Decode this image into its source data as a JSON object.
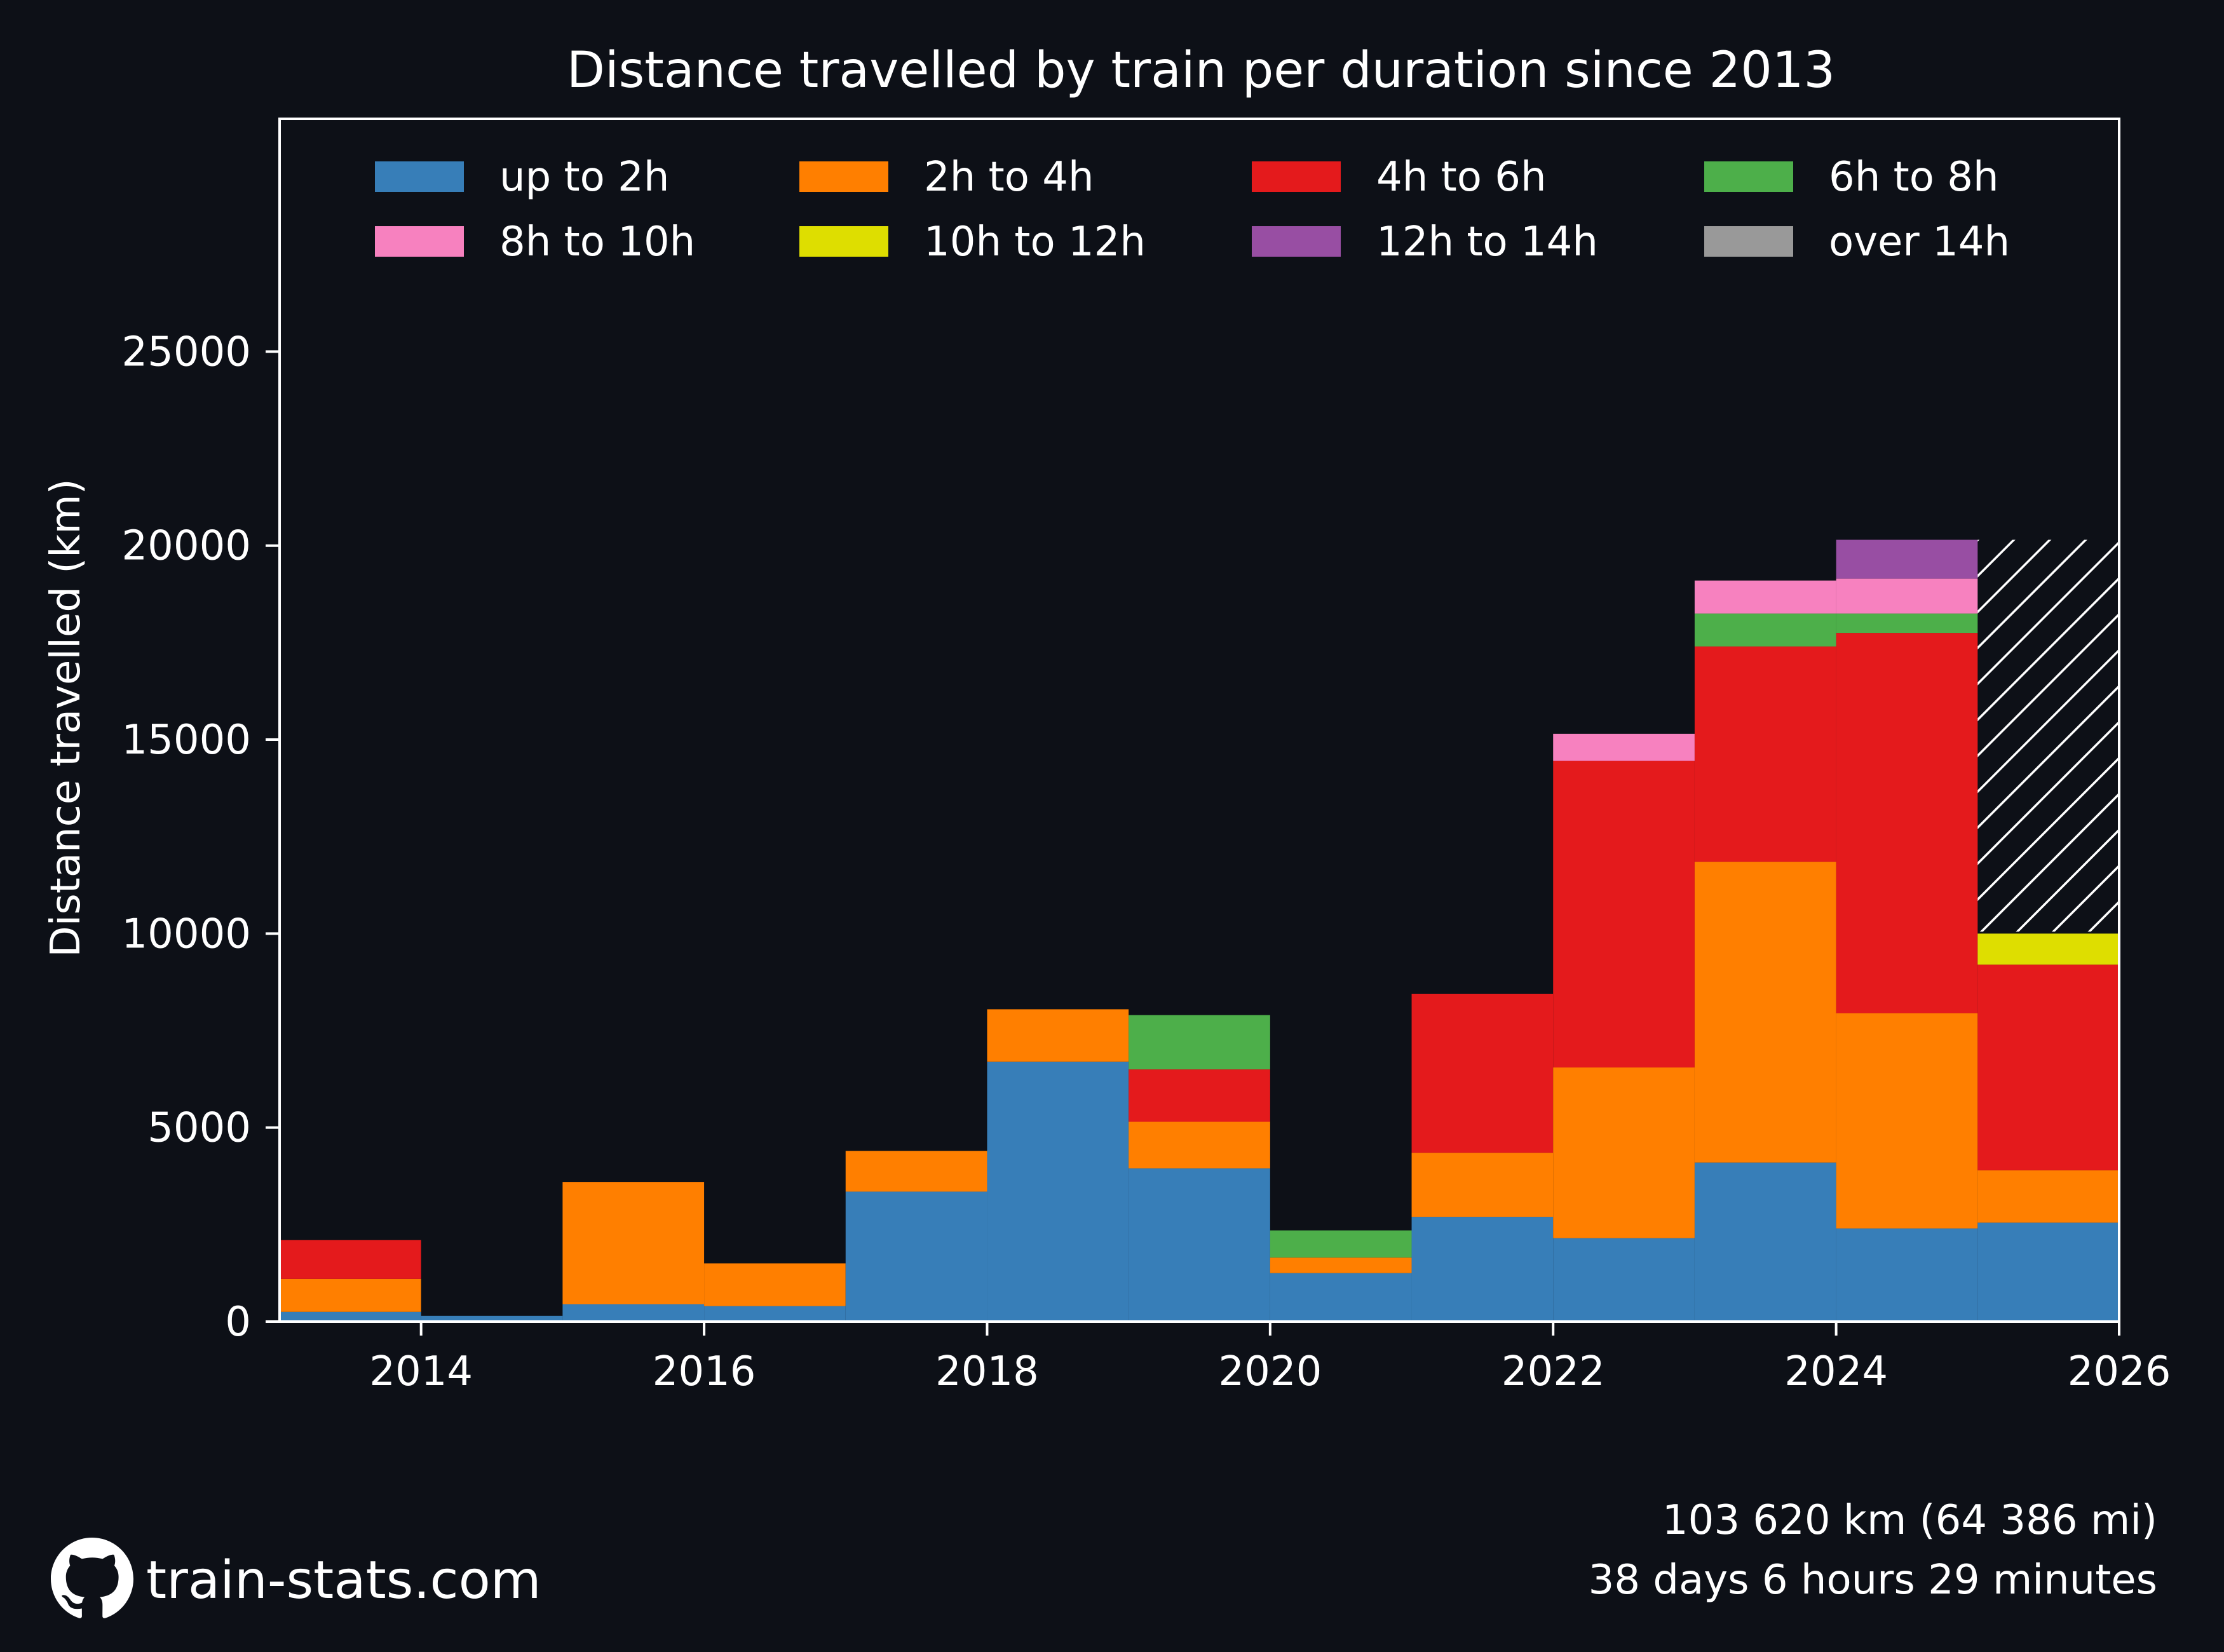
{
  "chart_data": {
    "type": "bar",
    "stacked": true,
    "title": "Distance travelled by train per duration since 2013",
    "xlabel": "",
    "ylabel": "Distance travelled (km)",
    "xlim": [
      2013,
      2026
    ],
    "ylim": [
      0,
      31000
    ],
    "x_ticks": [
      2014,
      2016,
      2018,
      2020,
      2022,
      2024,
      2026
    ],
    "y_ticks": [
      0,
      5000,
      10000,
      15000,
      20000,
      25000
    ],
    "grid": false,
    "legend_position": "top",
    "categories": [
      "2013",
      "2014",
      "2015",
      "2016",
      "2017",
      "2018",
      "2019",
      "2020",
      "2021",
      "2022",
      "2023",
      "2024",
      "2025"
    ],
    "series": [
      {
        "name": "up to 2h",
        "color": "#377eb8",
        "values": [
          250,
          150,
          450,
          400,
          3350,
          6700,
          3950,
          1250,
          2700,
          2150,
          4100,
          2400,
          2550
        ]
      },
      {
        "name": "2h to 4h",
        "color": "#ff7f00",
        "values": [
          850,
          0,
          3150,
          1100,
          1050,
          1350,
          1200,
          400,
          1650,
          4400,
          7750,
          5550,
          1350
        ]
      },
      {
        "name": "4h to 6h",
        "color": "#e41a1c",
        "values": [
          1000,
          0,
          0,
          0,
          0,
          0,
          1350,
          0,
          4100,
          7900,
          5550,
          9800,
          5300
        ]
      },
      {
        "name": "6h to 8h",
        "color": "#4daf4a",
        "values": [
          0,
          0,
          0,
          0,
          0,
          0,
          1400,
          700,
          0,
          0,
          850,
          500,
          0
        ]
      },
      {
        "name": "8h to 10h",
        "color": "#f781bf",
        "values": [
          0,
          0,
          0,
          0,
          0,
          0,
          0,
          0,
          0,
          700,
          850,
          900,
          0
        ]
      },
      {
        "name": "10h to 12h",
        "color": "#dede00",
        "values": [
          0,
          0,
          0,
          0,
          0,
          0,
          0,
          0,
          0,
          0,
          0,
          0,
          800
        ]
      },
      {
        "name": "12h to 14h",
        "color": "#984ea3",
        "values": [
          0,
          0,
          0,
          0,
          0,
          0,
          0,
          0,
          0,
          0,
          0,
          1000,
          0
        ]
      },
      {
        "name": "over 14h",
        "color": "#999999",
        "values": [
          0,
          0,
          0,
          0,
          0,
          0,
          0,
          0,
          0,
          0,
          0,
          0,
          0
        ]
      }
    ],
    "projection": {
      "x": "2025",
      "from": 10050,
      "to": 20150,
      "style": "hatched"
    }
  },
  "footer": {
    "distance": "103 620 km (64 386 mi)",
    "duration": "38 days 6 hours 29 minutes"
  },
  "brand": {
    "text": "train-stats.com",
    "icon": "github-icon"
  },
  "colors": {
    "background": "#0d1017",
    "foreground": "#ffffff"
  }
}
